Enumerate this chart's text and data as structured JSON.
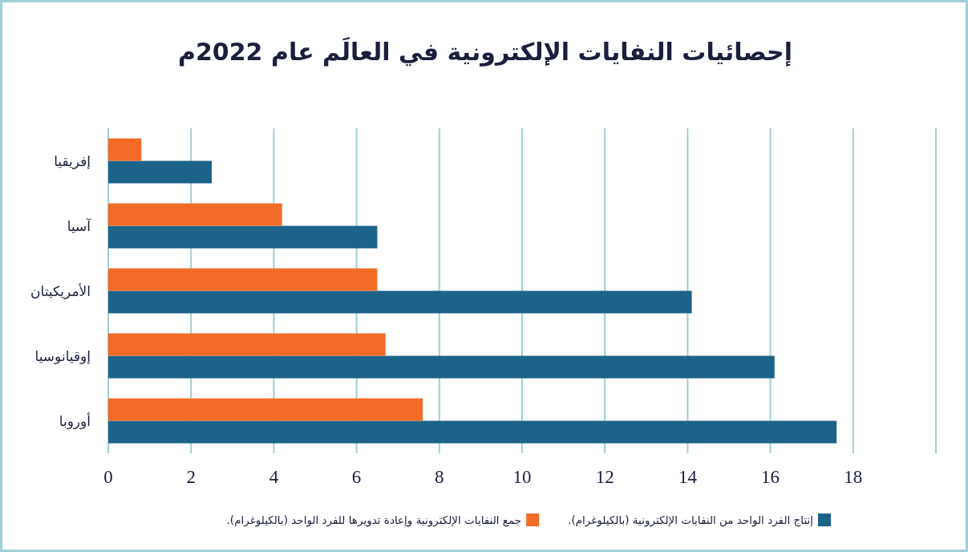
{
  "chart_data": {
    "type": "bar",
    "orientation": "horizontal",
    "title": "إحصائيات النفايات الإلكترونية في العالَم عام 2022م",
    "categories": [
      "إفريقيا",
      "آسيا",
      "الأمريكيتان",
      "إوقيانوسيا",
      "أوروبا"
    ],
    "series": [
      {
        "name": "إنتاج الفرد الواحد من النفايات الإلكترونية (بالكيلوغرام).",
        "color": "#1c6389",
        "values": [
          2.5,
          6.5,
          14.1,
          16.1,
          17.6
        ]
      },
      {
        "name": "جمع النفايات الإلكترونية وإعادة تدويرها للفرد الواحد (بالكيلوغرام).",
        "color": "#f26c28",
        "values": [
          0.8,
          4.2,
          6.5,
          6.7,
          7.6
        ]
      }
    ],
    "xlim": [
      0,
      20
    ],
    "xticks": [
      0,
      2,
      4,
      6,
      8,
      10,
      12,
      14,
      16,
      18,
      {
        "value": 20,
        "label": null
      }
    ],
    "grid": "x",
    "legend": "bottom"
  }
}
